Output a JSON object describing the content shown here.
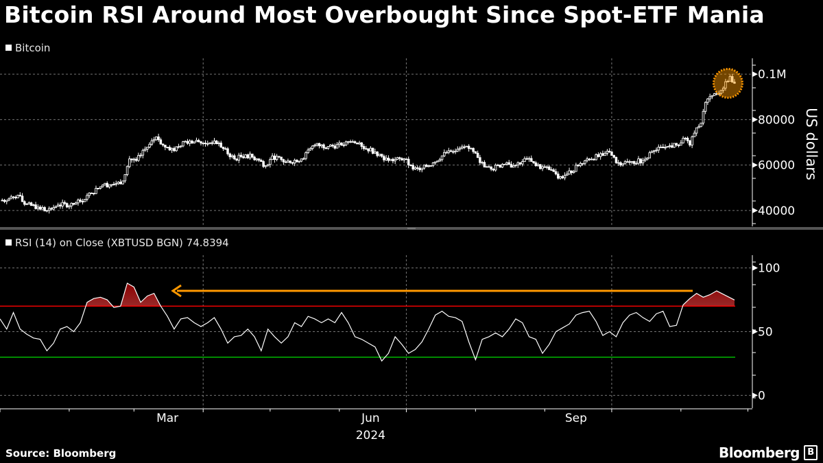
{
  "title": "Bitcoin RSI Around Most Overbought Since Spot-ETF Mania",
  "footer": {
    "source": "Source: Bloomberg",
    "logo": "Bloomberg"
  },
  "colors": {
    "background": "#000000",
    "price": "#ffffff",
    "rsi_line": "#ffffff",
    "overbought_line": "#ff0000",
    "oversold_line": "#00c800",
    "overbought_fill": "#8b0000",
    "highlight": "#ff9900"
  },
  "chart_data": [
    {
      "type": "candlestick",
      "legend": "Bitcoin",
      "ylabel": "US dollars",
      "ylim": [
        33000,
        107000
      ],
      "yticks": [
        {
          "v": 40000,
          "label": "40000"
        },
        {
          "v": 60000,
          "label": "60000"
        },
        {
          "v": 80000,
          "label": "80000"
        },
        {
          "v": 100000,
          "label": "0.1M"
        }
      ],
      "xlim": [
        "2024-01-01",
        "2024-12-03"
      ],
      "grid": true,
      "annotation": "circle highlighting latest high",
      "series": [
        [
          "2024-01-01",
          44500
        ],
        [
          "2024-01-04",
          44500
        ],
        [
          "2024-01-09",
          46700
        ],
        [
          "2024-01-12",
          42700
        ],
        [
          "2024-01-18",
          41500
        ],
        [
          "2024-01-22",
          40000
        ],
        [
          "2024-01-27",
          42400
        ],
        [
          "2024-02-03",
          42700
        ],
        [
          "2024-02-06",
          44000
        ],
        [
          "2024-02-11",
          47600
        ],
        [
          "2024-02-16",
          51200
        ],
        [
          "2024-02-22",
          51800
        ],
        [
          "2024-02-25",
          53000
        ],
        [
          "2024-02-28",
          62700
        ],
        [
          "2024-03-02",
          62000
        ],
        [
          "2024-03-07",
          67900
        ],
        [
          "2024-03-11",
          72400
        ],
        [
          "2024-03-14",
          68800
        ],
        [
          "2024-03-19",
          66300
        ],
        [
          "2024-03-23",
          70300
        ],
        [
          "2024-03-26",
          70600
        ],
        [
          "2024-03-30",
          70300
        ],
        [
          "2024-04-02",
          69400
        ],
        [
          "2024-04-06",
          70600
        ],
        [
          "2024-04-09",
          67900
        ],
        [
          "2024-04-15",
          62700
        ],
        [
          "2024-04-20",
          64500
        ],
        [
          "2024-04-25",
          62700
        ],
        [
          "2024-04-29",
          59700
        ],
        [
          "2024-05-02",
          64000
        ],
        [
          "2024-05-08",
          61200
        ],
        [
          "2024-05-15",
          62700
        ],
        [
          "2024-05-21",
          68800
        ],
        [
          "2024-05-27",
          68200
        ],
        [
          "2024-06-02",
          68800
        ],
        [
          "2024-06-07",
          70300
        ],
        [
          "2024-06-11",
          68200
        ],
        [
          "2024-06-17",
          65800
        ],
        [
          "2024-06-23",
          62000
        ],
        [
          "2024-06-30",
          62700
        ],
        [
          "2024-07-04",
          58200
        ],
        [
          "2024-07-07",
          57900
        ],
        [
          "2024-07-13",
          61000
        ],
        [
          "2024-07-20",
          66300
        ],
        [
          "2024-07-24",
          67000
        ],
        [
          "2024-07-29",
          67300
        ],
        [
          "2024-08-02",
          63300
        ],
        [
          "2024-08-05",
          59100
        ],
        [
          "2024-08-08",
          58200
        ],
        [
          "2024-08-13",
          60300
        ],
        [
          "2024-08-18",
          59700
        ],
        [
          "2024-08-24",
          62700
        ],
        [
          "2024-08-28",
          59700
        ],
        [
          "2024-09-04",
          57900
        ],
        [
          "2024-09-07",
          54200
        ],
        [
          "2024-09-11",
          56000
        ],
        [
          "2024-09-16",
          59700
        ],
        [
          "2024-09-20",
          62700
        ],
        [
          "2024-09-27",
          64200
        ],
        [
          "2024-09-30",
          65800
        ],
        [
          "2024-10-03",
          61000
        ],
        [
          "2024-10-09",
          61200
        ],
        [
          "2024-10-15",
          62000
        ],
        [
          "2024-10-20",
          66300
        ],
        [
          "2024-10-26",
          68200
        ],
        [
          "2024-10-30",
          68800
        ],
        [
          "2024-11-02",
          71800
        ],
        [
          "2024-11-05",
          68800
        ],
        [
          "2024-11-08",
          76400
        ],
        [
          "2024-11-10",
          78500
        ],
        [
          "2024-11-12",
          87600
        ],
        [
          "2024-11-15",
          90600
        ],
        [
          "2024-11-18",
          91500
        ],
        [
          "2024-11-21",
          96700
        ],
        [
          "2024-11-23",
          99000
        ],
        [
          "2024-11-25",
          96000
        ]
      ]
    },
    {
      "type": "line",
      "legend": "RSI (14)  on Close (XBTUSD BGN) 74.8394",
      "ylim": [
        -10,
        110
      ],
      "yticks": [
        {
          "v": 0,
          "label": "0"
        },
        {
          "v": 50,
          "label": "50"
        },
        {
          "v": 100,
          "label": "100"
        }
      ],
      "overbought": 70,
      "oversold": 30,
      "xticks": [
        {
          "date": "2024-03-16",
          "label": "Mar"
        },
        {
          "date": "2024-06-15",
          "label": "Jun"
        },
        {
          "date": "2024-09-15",
          "label": "Sep"
        }
      ],
      "year_label": "2024",
      "annotation": "arrow pointing back from current overbought level to March",
      "series": [
        [
          "2024-01-01",
          60
        ],
        [
          "2024-01-04",
          52
        ],
        [
          "2024-01-07",
          65
        ],
        [
          "2024-01-10",
          52
        ],
        [
          "2024-01-13",
          48
        ],
        [
          "2024-01-16",
          45
        ],
        [
          "2024-01-19",
          44
        ],
        [
          "2024-01-22",
          35
        ],
        [
          "2024-01-25",
          41
        ],
        [
          "2024-01-28",
          52
        ],
        [
          "2024-01-31",
          54
        ],
        [
          "2024-02-03",
          50
        ],
        [
          "2024-02-06",
          57
        ],
        [
          "2024-02-09",
          73
        ],
        [
          "2024-02-12",
          76
        ],
        [
          "2024-02-15",
          77
        ],
        [
          "2024-02-18",
          75
        ],
        [
          "2024-02-21",
          69
        ],
        [
          "2024-02-24",
          70
        ],
        [
          "2024-02-27",
          88
        ],
        [
          "2024-03-01",
          85
        ],
        [
          "2024-03-04",
          73
        ],
        [
          "2024-03-07",
          78
        ],
        [
          "2024-03-10",
          80
        ],
        [
          "2024-03-13",
          70
        ],
        [
          "2024-03-16",
          62
        ],
        [
          "2024-03-19",
          52
        ],
        [
          "2024-03-22",
          60
        ],
        [
          "2024-03-25",
          61
        ],
        [
          "2024-03-28",
          57
        ],
        [
          "2024-03-31",
          54
        ],
        [
          "2024-04-03",
          57
        ],
        [
          "2024-04-06",
          61
        ],
        [
          "2024-04-09",
          52
        ],
        [
          "2024-04-12",
          41
        ],
        [
          "2024-04-15",
          46
        ],
        [
          "2024-04-18",
          47
        ],
        [
          "2024-04-21",
          52
        ],
        [
          "2024-04-24",
          46
        ],
        [
          "2024-04-27",
          35
        ],
        [
          "2024-04-30",
          52
        ],
        [
          "2024-05-03",
          46
        ],
        [
          "2024-05-06",
          41
        ],
        [
          "2024-05-09",
          46
        ],
        [
          "2024-05-12",
          57
        ],
        [
          "2024-05-15",
          54
        ],
        [
          "2024-05-18",
          62
        ],
        [
          "2024-05-21",
          60
        ],
        [
          "2024-05-24",
          57
        ],
        [
          "2024-05-27",
          60
        ],
        [
          "2024-05-30",
          57
        ],
        [
          "2024-06-02",
          65
        ],
        [
          "2024-06-05",
          57
        ],
        [
          "2024-06-08",
          46
        ],
        [
          "2024-06-11",
          44
        ],
        [
          "2024-06-14",
          41
        ],
        [
          "2024-06-17",
          38
        ],
        [
          "2024-06-20",
          27
        ],
        [
          "2024-06-23",
          33
        ],
        [
          "2024-06-26",
          46
        ],
        [
          "2024-06-29",
          40
        ],
        [
          "2024-07-02",
          33
        ],
        [
          "2024-07-05",
          36
        ],
        [
          "2024-07-08",
          42
        ],
        [
          "2024-07-11",
          52
        ],
        [
          "2024-07-14",
          63
        ],
        [
          "2024-07-17",
          66
        ],
        [
          "2024-07-20",
          62
        ],
        [
          "2024-07-23",
          61
        ],
        [
          "2024-07-26",
          58
        ],
        [
          "2024-07-29",
          42
        ],
        [
          "2024-08-01",
          28
        ],
        [
          "2024-08-04",
          44
        ],
        [
          "2024-08-07",
          46
        ],
        [
          "2024-08-10",
          49
        ],
        [
          "2024-08-13",
          46
        ],
        [
          "2024-08-16",
          52
        ],
        [
          "2024-08-19",
          60
        ],
        [
          "2024-08-22",
          57
        ],
        [
          "2024-08-25",
          46
        ],
        [
          "2024-08-28",
          44
        ],
        [
          "2024-08-31",
          33
        ],
        [
          "2024-09-03",
          40
        ],
        [
          "2024-09-06",
          50
        ],
        [
          "2024-09-09",
          53
        ],
        [
          "2024-09-12",
          56
        ],
        [
          "2024-09-15",
          63
        ],
        [
          "2024-09-18",
          65
        ],
        [
          "2024-09-21",
          66
        ],
        [
          "2024-09-24",
          58
        ],
        [
          "2024-09-27",
          47
        ],
        [
          "2024-09-30",
          50
        ],
        [
          "2024-10-03",
          46
        ],
        [
          "2024-10-06",
          57
        ],
        [
          "2024-10-09",
          63
        ],
        [
          "2024-10-12",
          65
        ],
        [
          "2024-10-15",
          61
        ],
        [
          "2024-10-18",
          58
        ],
        [
          "2024-10-21",
          64
        ],
        [
          "2024-10-24",
          66
        ],
        [
          "2024-10-27",
          54
        ],
        [
          "2024-10-30",
          55
        ],
        [
          "2024-11-02",
          71
        ],
        [
          "2024-11-05",
          76
        ],
        [
          "2024-11-08",
          80
        ],
        [
          "2024-11-11",
          77
        ],
        [
          "2024-11-14",
          79
        ],
        [
          "2024-11-17",
          82
        ],
        [
          "2024-11-25",
          74.8394
        ]
      ]
    }
  ]
}
